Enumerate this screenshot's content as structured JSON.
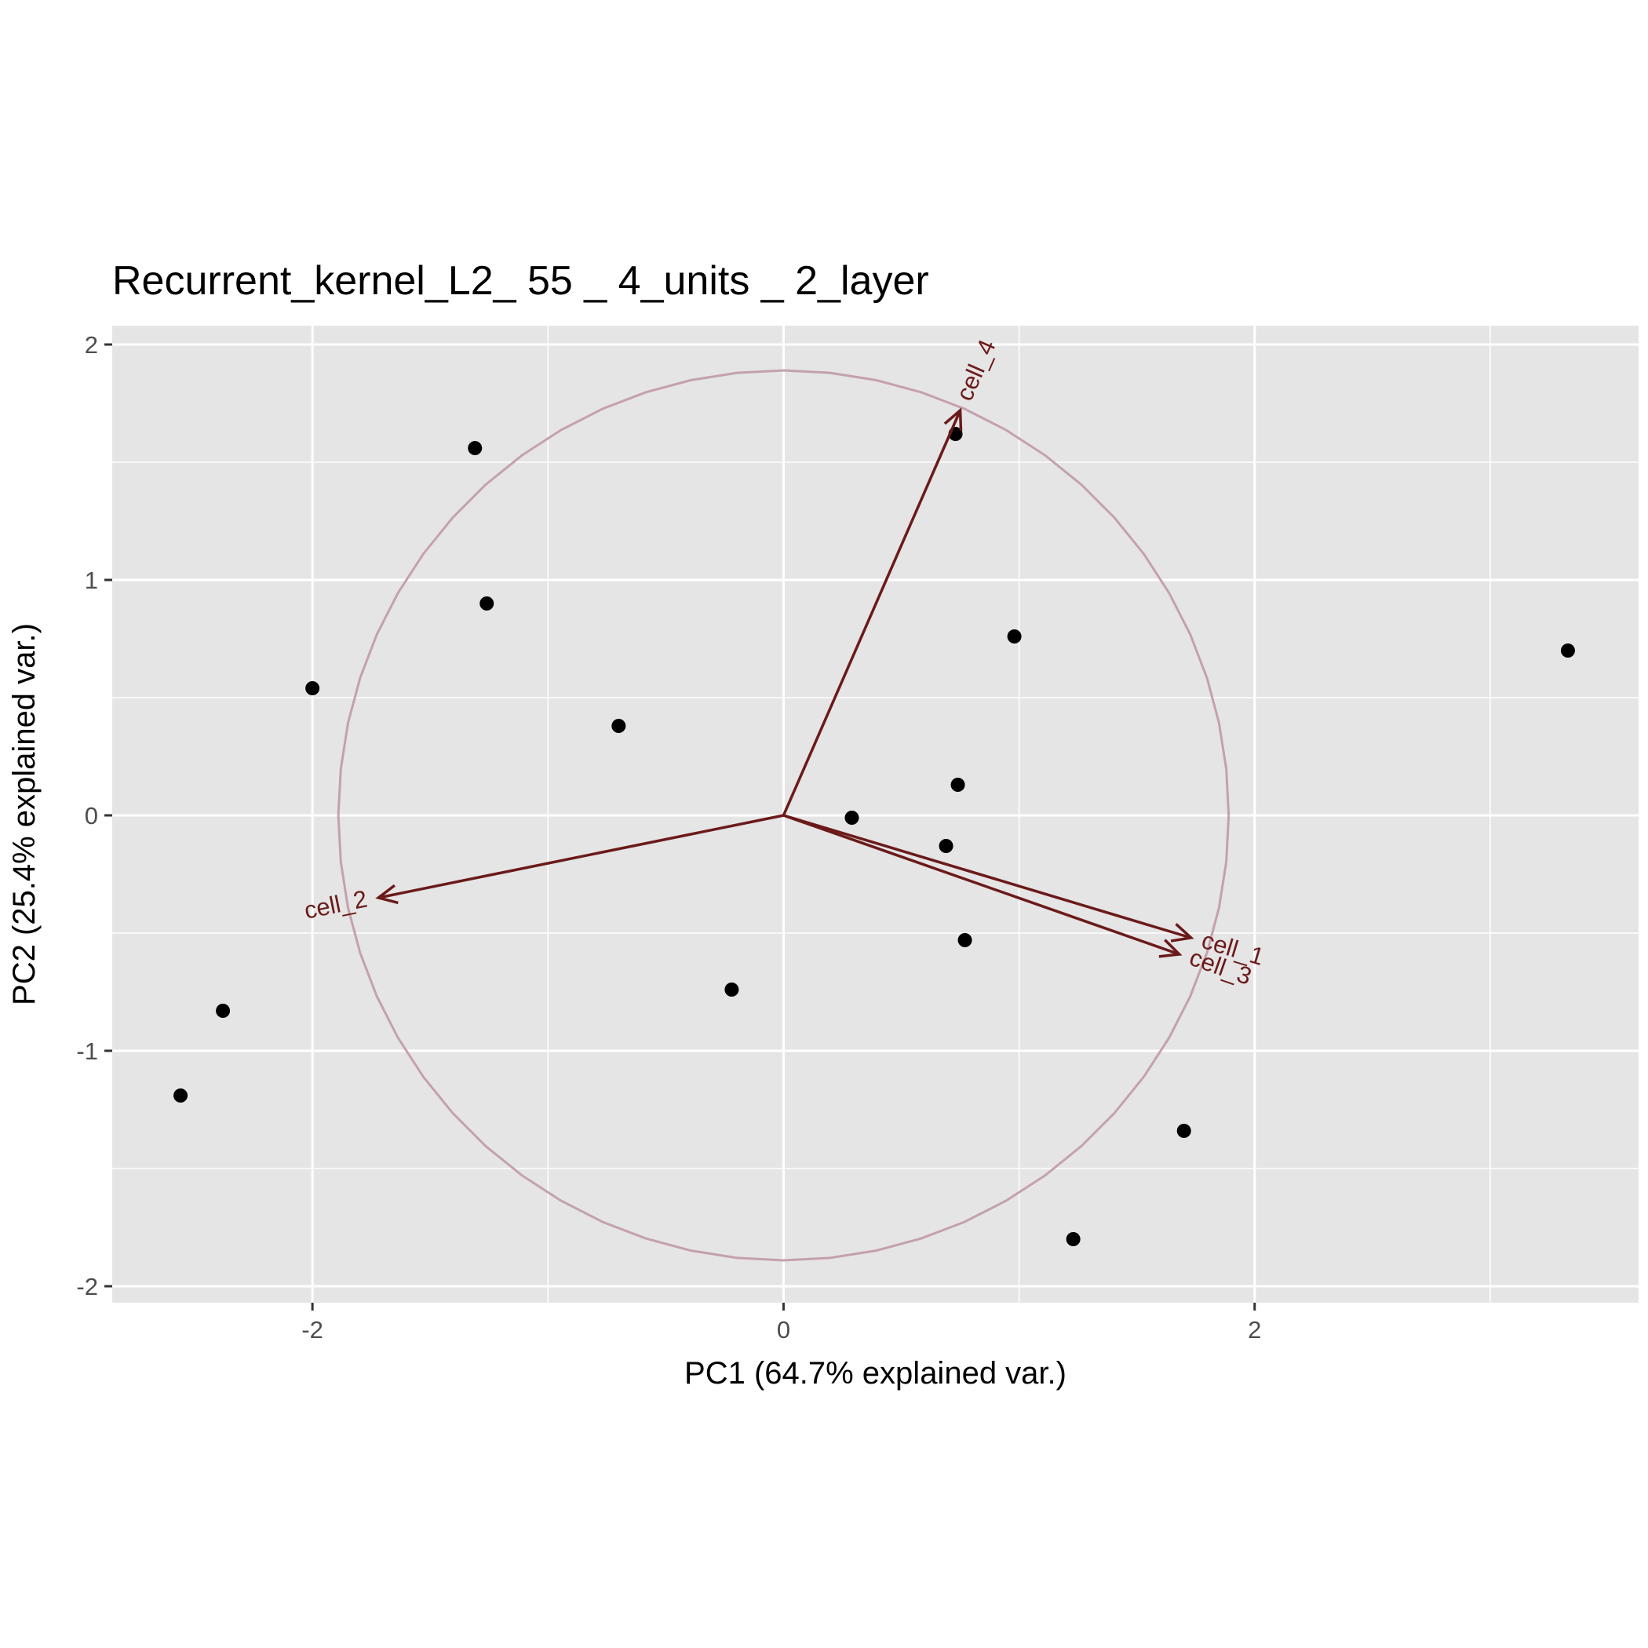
{
  "chart_data": {
    "type": "scatter",
    "title": "Recurrent_kernel_L2_ 55 _ 4_units _ 2_layer",
    "xlabel": "PC1 (64.7% explained var.)",
    "ylabel": "PC2 (25.4% explained var.)",
    "xlim": [
      -2.85,
      3.63
    ],
    "ylim": [
      -2.07,
      2.08
    ],
    "x_ticks": [
      -2,
      0,
      2
    ],
    "y_ticks": [
      -2,
      -1,
      0,
      1,
      2
    ],
    "x_tick_labels": [
      "-2",
      "0",
      "2"
    ],
    "y_tick_labels": [
      "-2",
      "-1",
      "0",
      "1",
      "2"
    ],
    "grid": true,
    "colors": {
      "panel_background": "#e5e5e5",
      "grid": "#ffffff",
      "points": "#000000",
      "arrows": "#6b1a1a",
      "circle": "#c4a1ac"
    },
    "points": [
      {
        "x": -1.31,
        "y": 1.56
      },
      {
        "x": -1.26,
        "y": 0.9
      },
      {
        "x": -2.0,
        "y": 0.54
      },
      {
        "x": -0.7,
        "y": 0.38
      },
      {
        "x": 0.73,
        "y": 1.62
      },
      {
        "x": 0.98,
        "y": 0.76
      },
      {
        "x": 3.33,
        "y": 0.7
      },
      {
        "x": 0.74,
        "y": 0.13
      },
      {
        "x": 0.29,
        "y": -0.01
      },
      {
        "x": 0.69,
        "y": -0.13
      },
      {
        "x": 0.77,
        "y": -0.53
      },
      {
        "x": -0.22,
        "y": -0.74
      },
      {
        "x": -2.38,
        "y": -0.83
      },
      {
        "x": -2.56,
        "y": -1.19
      },
      {
        "x": 1.7,
        "y": -1.34
      },
      {
        "x": 1.23,
        "y": -1.8
      }
    ],
    "circle_radius": 1.89,
    "arrows": [
      {
        "label": "cell_4",
        "x": 0.75,
        "y": 1.72
      },
      {
        "label": "cell_2",
        "x": -1.72,
        "y": -0.35
      },
      {
        "label": "cell_1",
        "x": 1.73,
        "y": -0.52
      },
      {
        "label": "cell_3",
        "x": 1.68,
        "y": -0.59
      }
    ]
  }
}
